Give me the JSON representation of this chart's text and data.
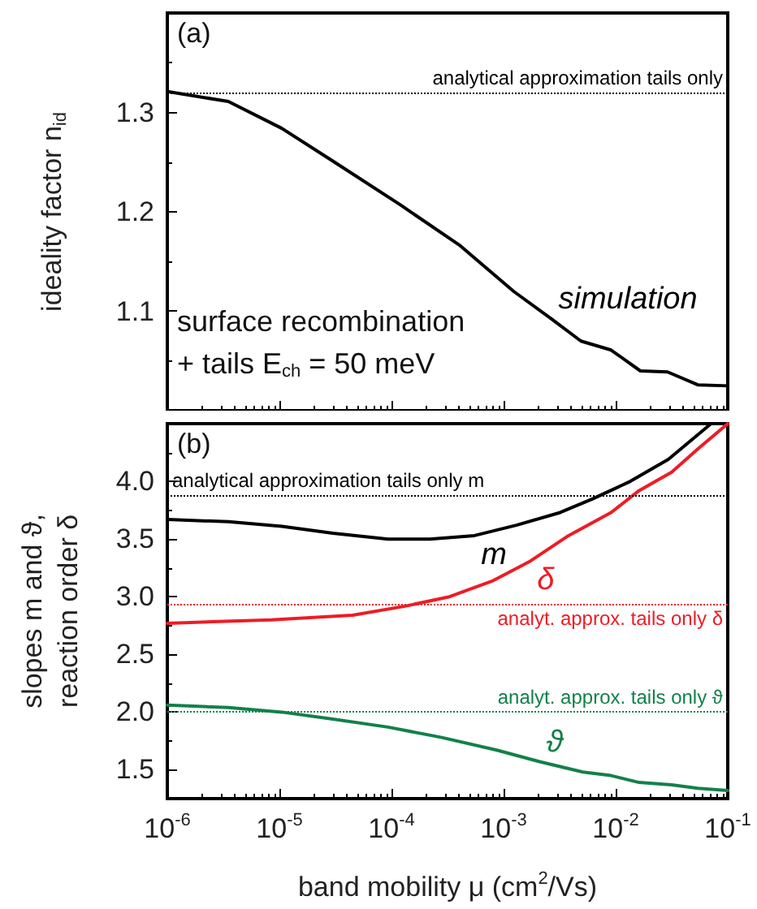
{
  "chart_data": [
    {
      "type": "line",
      "ylabel": "ideality factor n$_{id}$",
      "log": "x",
      "tick_labels": "y",
      "grid": false,
      "legend": false,
      "marker": "none",
      "line_style": "solid",
      "annotations": [
        "(a)",
        "surface recombination",
        "+ tails E$_{ch}$ = 50 meV"
      ],
      "xlim": [
        1e-06,
        0.1
      ],
      "ylim": [
        1.0,
        1.4
      ],
      "yticks": [
        1.1,
        1.2,
        1.3
      ],
      "ref_lines": [
        {
          "axis": "y",
          "value": 1.32,
          "label": "analytical approximation tails only",
          "color": "#000000",
          "line_style": "dotted"
        }
      ],
      "series": [
        {
          "name": "simulation",
          "color": "#000000",
          "x": [
            1e-06,
            3.5e-06,
            1.05e-05,
            3e-05,
            0.00012,
            0.00041,
            0.00123,
            0.0027,
            0.0049,
            0.0091,
            0.0166,
            0.029,
            0.054,
            0.1
          ],
          "values": [
            1.321,
            1.311,
            1.284,
            1.251,
            1.207,
            1.166,
            1.12,
            1.092,
            1.07,
            1.061,
            1.04,
            1.039,
            1.026,
            1.025
          ]
        }
      ]
    },
    {
      "type": "line",
      "xlabel": "band mobility μ (cm$^{2}$/Vs)",
      "ylabel": "slopes m and ϑ,\nreaction order δ",
      "log": "x",
      "grid": false,
      "legend": false,
      "marker": "none",
      "line_style": "solid",
      "annotations": [
        "(b)"
      ],
      "xlim": [
        1e-06,
        0.1
      ],
      "ylim": [
        1.25,
        4.5
      ],
      "yticks": [
        1.5,
        {
          "value": 2,
          "label": "2.0"
        },
        2.5,
        {
          "value": 3,
          "label": "3.0"
        },
        3.5,
        {
          "value": 4,
          "label": "4.0"
        }
      ],
      "xticks": [
        {
          "value": 1e-06,
          "label": "10$^{-6}$"
        },
        {
          "value": 1e-05,
          "label": "10$^{-5}$"
        },
        {
          "value": 0.0001,
          "label": "10$^{-4}$"
        },
        {
          "value": 0.001,
          "label": "10$^{-3}$"
        },
        {
          "value": 0.01,
          "label": "10$^{-2}$"
        },
        {
          "value": 0.1,
          "label": "10$^{-1}$"
        }
      ],
      "ref_lines": [
        {
          "axis": "y",
          "value": 3.88,
          "label": "analytical approximation tails only m",
          "color": "#000000",
          "line_style": "dotted"
        },
        {
          "axis": "y",
          "value": 2.94,
          "label": "analyt. approx. tails only δ",
          "color": "#ee1c25",
          "line_style": "dotted"
        },
        {
          "axis": "y",
          "value": 2.0,
          "label": "analyt. approx. tails only ϑ",
          "color": "#13804a",
          "line_style": "dotted"
        }
      ],
      "series": [
        {
          "name": "m",
          "color": "#000000",
          "x": [
            1e-06,
            3.5e-06,
            1.05e-05,
            3e-05,
            9.3e-05,
            0.00022,
            0.00055,
            0.0013,
            0.0032,
            0.0063,
            0.0135,
            0.0295,
            0.071
          ],
          "values": [
            3.67,
            3.65,
            3.61,
            3.55,
            3.5,
            3.5,
            3.53,
            3.62,
            3.73,
            3.85,
            4.0,
            4.19,
            4.5
          ]
        },
        {
          "name": "δ",
          "color": "#ee1c25",
          "x": [
            1e-06,
            8.5e-06,
            4.5e-05,
            0.000135,
            0.00033,
            0.00081,
            0.00174,
            0.0038,
            0.0091,
            0.0162,
            0.0316,
            0.054,
            0.1
          ],
          "values": [
            2.77,
            2.8,
            2.84,
            2.92,
            3.0,
            3.14,
            3.31,
            3.53,
            3.73,
            3.92,
            4.08,
            4.28,
            4.5
          ]
        },
        {
          "name": "ϑ",
          "color": "#13804a",
          "x": [
            1e-06,
            3.5e-06,
            1.05e-05,
            3e-05,
            9.3e-05,
            0.00028,
            0.00087,
            0.0021,
            0.0051,
            0.0091,
            0.0162,
            0.0316,
            0.054,
            0.1
          ],
          "values": [
            2.06,
            2.04,
            2.0,
            1.94,
            1.87,
            1.78,
            1.67,
            1.57,
            1.48,
            1.45,
            1.39,
            1.37,
            1.34,
            1.32
          ]
        }
      ]
    }
  ]
}
